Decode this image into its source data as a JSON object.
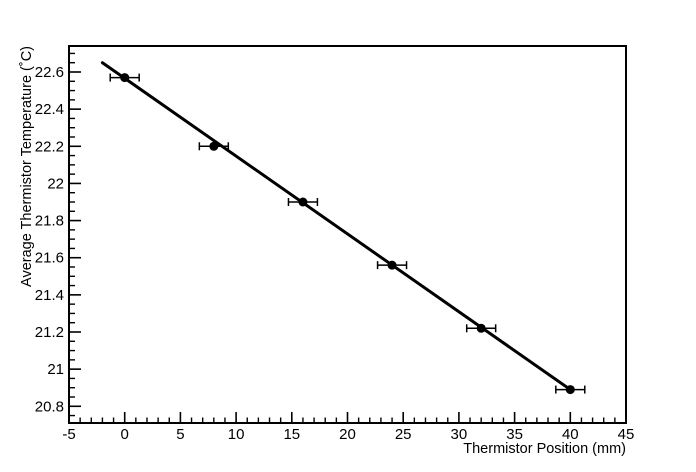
{
  "app": {
    "background_color": "#ffffff",
    "foreground_color": "#000000"
  },
  "chart_data": {
    "type": "scatter",
    "title": "",
    "xlabel": "Thermistor Position (mm)",
    "ylabel": "Average Thermistor Temperature (˚C)",
    "xlim": [
      -5,
      45
    ],
    "ylim": [
      20.71,
      22.74
    ],
    "grid": false,
    "legend": false,
    "x_tick_values": [
      -5,
      0,
      5,
      10,
      15,
      20,
      25,
      30,
      35,
      40,
      45
    ],
    "x_tick_labels": [
      "-5",
      "0",
      "5",
      "10",
      "15",
      "20",
      "25",
      "30",
      "35",
      "40",
      "45"
    ],
    "x_minor_step": 1,
    "y_tick_values": [
      20.8,
      21.0,
      21.2,
      21.4,
      21.6,
      21.8,
      22.0,
      22.2,
      22.4,
      22.6
    ],
    "y_tick_labels": [
      "20.8",
      "21",
      "21.2",
      "21.4",
      "21.6",
      "21.8",
      "22",
      "22.2",
      "22.4",
      "22.6"
    ],
    "y_minor_step": 0.05,
    "series": [
      {
        "name": "thermistor-measurements",
        "marker": "filled-circle",
        "color": "#000000",
        "x": [
          0,
          8,
          16,
          24,
          32,
          40
        ],
        "y": [
          22.57,
          22.2,
          21.9,
          21.56,
          21.22,
          20.89
        ],
        "xerr": [
          1.3,
          1.3,
          1.3,
          1.3,
          1.3,
          1.3
        ],
        "yerr": [
          0,
          0,
          0,
          0,
          0,
          0
        ]
      }
    ],
    "fit_line": {
      "name": "linear-fit",
      "color": "#000000",
      "x1": -2,
      "y1": 22.65,
      "x2": 40,
      "y2": 20.89
    }
  }
}
